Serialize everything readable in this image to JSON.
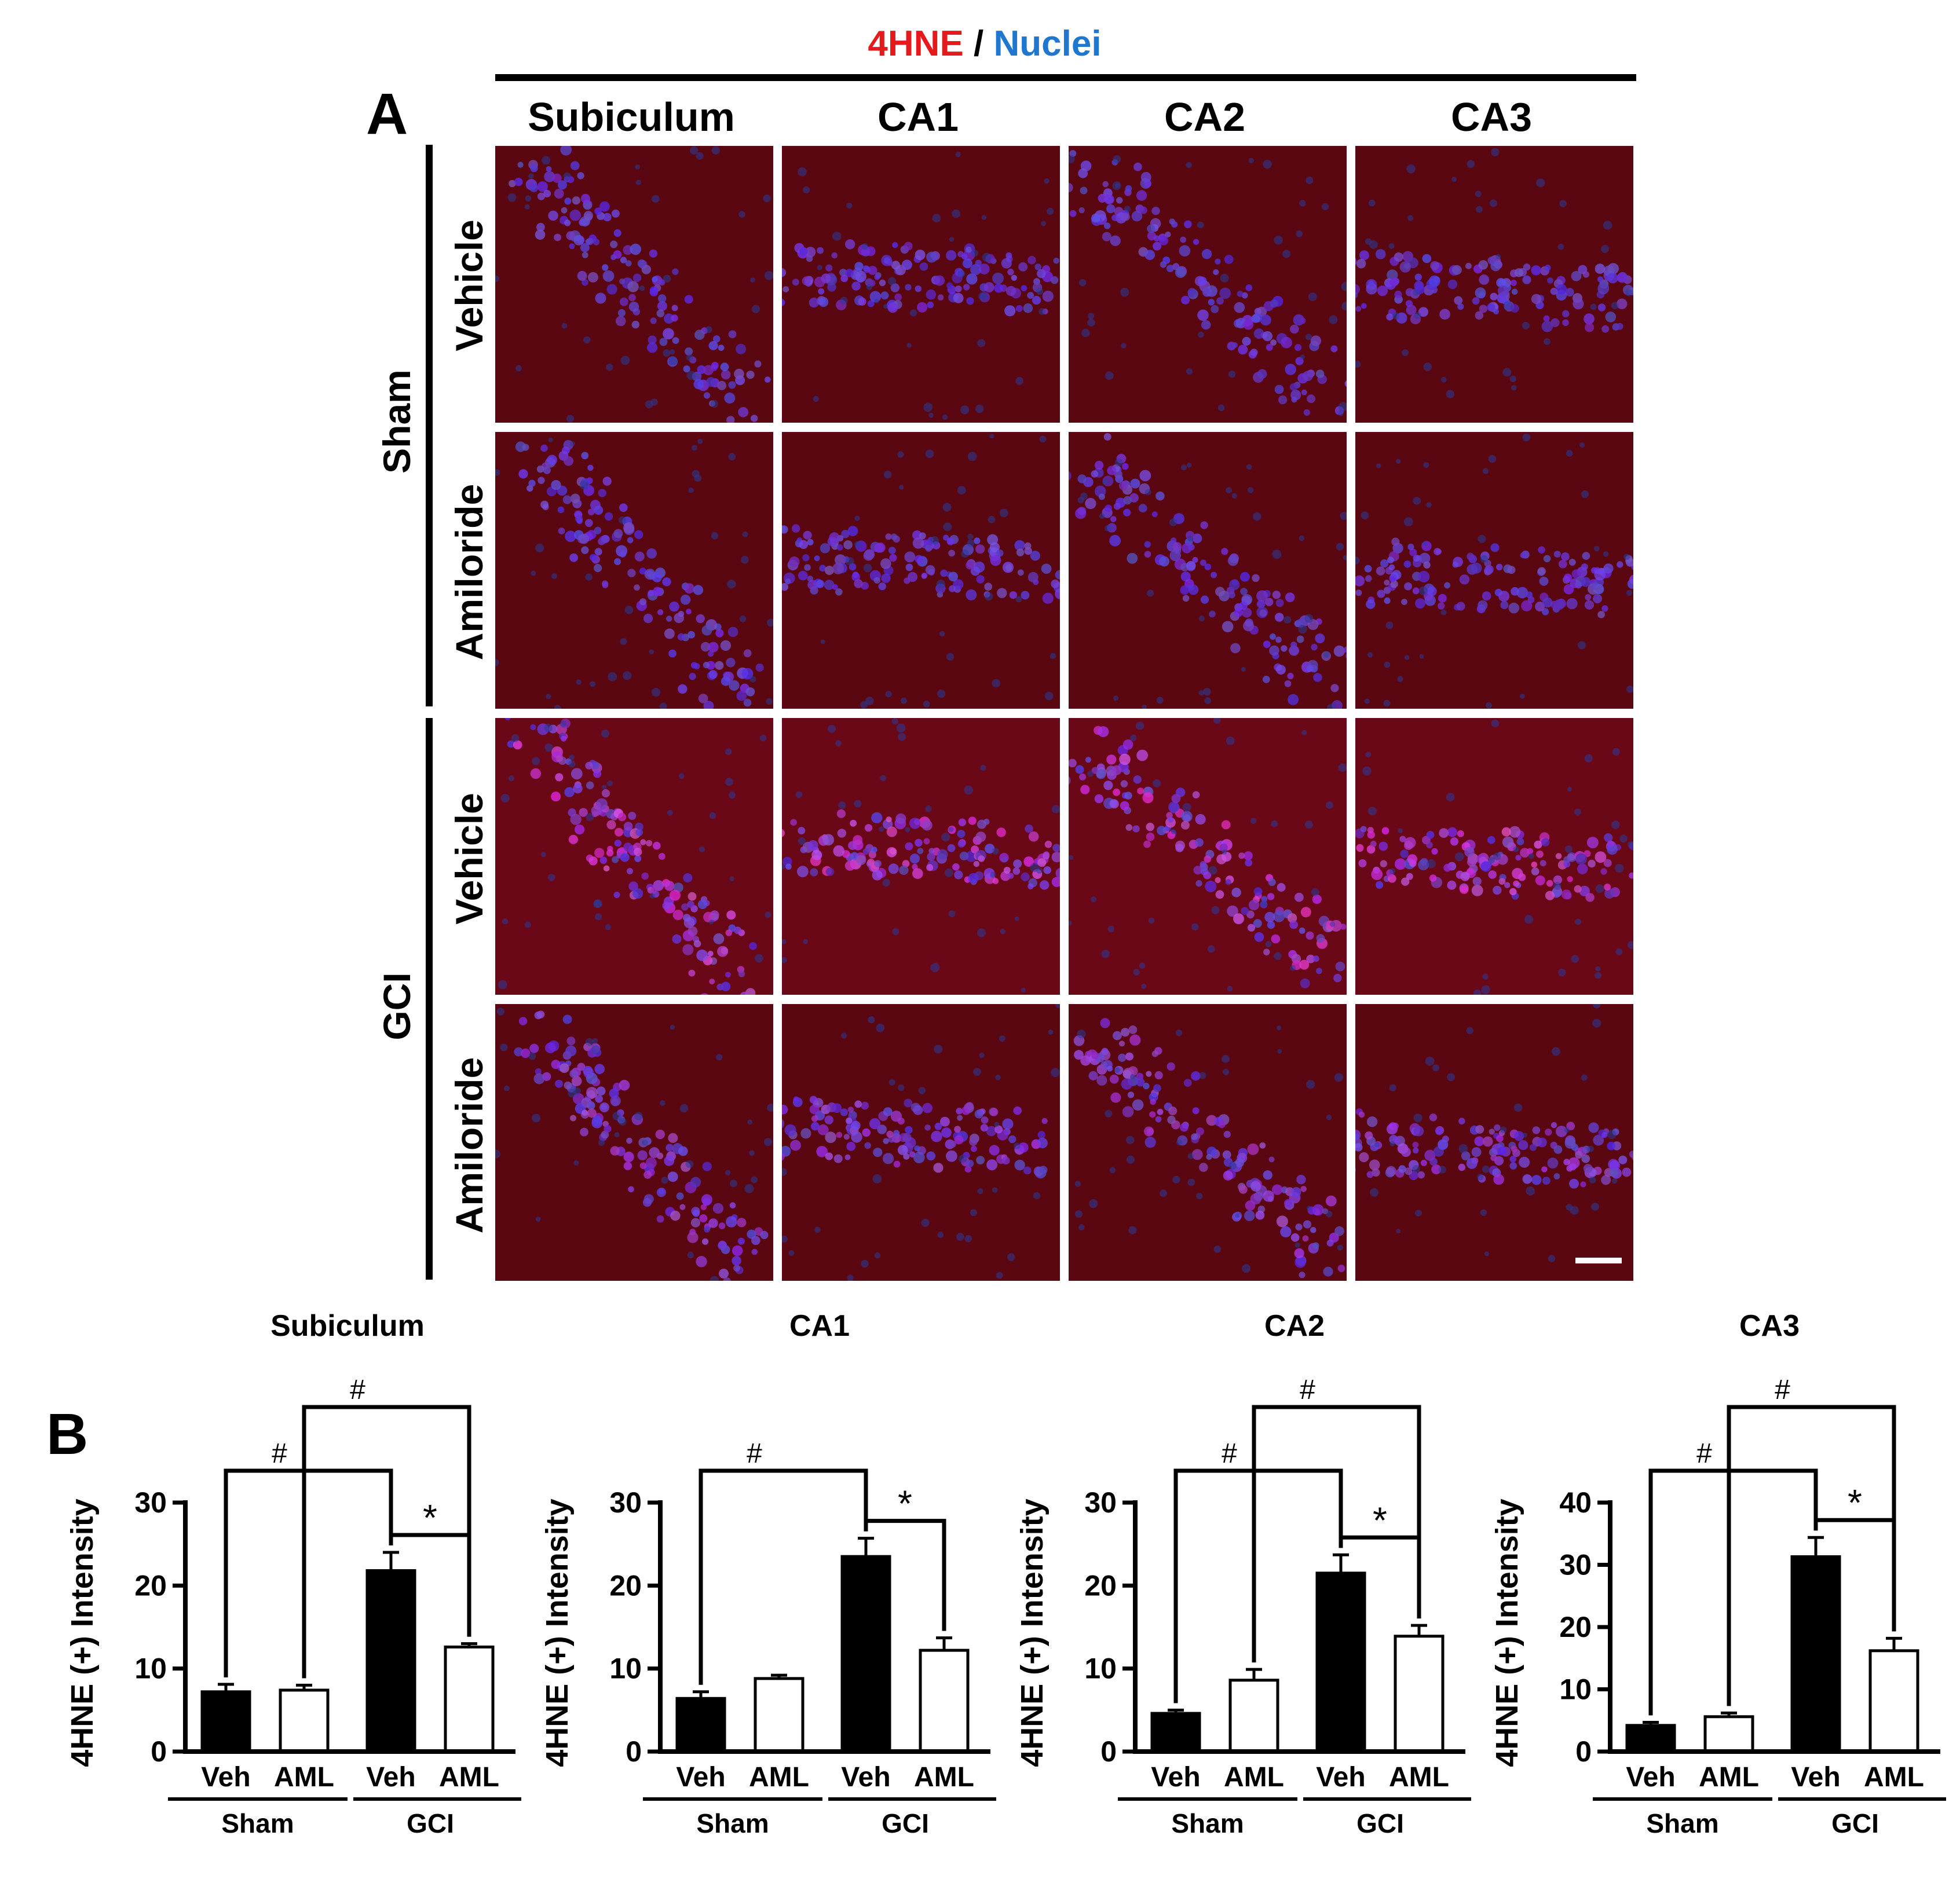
{
  "panel_a": {
    "letter": "A",
    "legend": {
      "stain": "4HNE",
      "separator": " / ",
      "counterstain": "Nuclei"
    },
    "columns": [
      "Subiculum",
      "CA1",
      "CA2",
      "CA3"
    ],
    "groups": [
      {
        "label": "Sham",
        "rows": [
          "Vehicle",
          "Amiloride"
        ]
      },
      {
        "label": "GCI",
        "rows": [
          "Vehicle",
          "Amiloride"
        ]
      }
    ],
    "colors": {
      "stain": "#e41a1c",
      "counterstain": "#1f77d0"
    }
  },
  "panel_b": {
    "letter": "B"
  },
  "chart_data": [
    {
      "type": "bar",
      "title": "Subiculum",
      "ylabel": "4HNE (+) Intensity",
      "ylim": [
        0,
        30
      ],
      "yticks": [
        0,
        10,
        20,
        30
      ],
      "categories": [
        "Veh",
        "AML",
        "Veh",
        "AML"
      ],
      "groups": [
        "Sham",
        "GCI"
      ],
      "values": [
        7.2,
        7.4,
        21.8,
        12.6
      ],
      "errors": [
        0.9,
        0.6,
        2.2,
        0.4
      ],
      "significance": [
        {
          "from": 0,
          "to": 2,
          "label": "#"
        },
        {
          "from": 1,
          "to": 3,
          "label": "#"
        },
        {
          "from": 2,
          "to": 3,
          "label": "*"
        }
      ]
    },
    {
      "type": "bar",
      "title": "CA1",
      "ylabel": "4HNE (+) Intensity",
      "ylim": [
        0,
        30
      ],
      "yticks": [
        0,
        10,
        20,
        30
      ],
      "categories": [
        "Veh",
        "AML",
        "Veh",
        "AML"
      ],
      "groups": [
        "Sham",
        "GCI"
      ],
      "values": [
        6.4,
        8.8,
        23.5,
        12.2
      ],
      "errors": [
        0.8,
        0.4,
        2.2,
        1.5
      ],
      "significance": [
        {
          "from": 0,
          "to": 2,
          "label": "#"
        },
        {
          "from": 2,
          "to": 3,
          "label": "*"
        }
      ]
    },
    {
      "type": "bar",
      "title": "CA2",
      "ylabel": "4HNE (+) Intensity",
      "ylim": [
        0,
        30
      ],
      "yticks": [
        0,
        10,
        20,
        30
      ],
      "categories": [
        "Veh",
        "AML",
        "Veh",
        "AML"
      ],
      "groups": [
        "Sham",
        "GCI"
      ],
      "values": [
        4.6,
        8.6,
        21.5,
        13.9
      ],
      "errors": [
        0.4,
        1.3,
        2.2,
        1.3
      ],
      "significance": [
        {
          "from": 0,
          "to": 2,
          "label": "#"
        },
        {
          "from": 1,
          "to": 3,
          "label": "#"
        },
        {
          "from": 2,
          "to": 3,
          "label": "*"
        }
      ]
    },
    {
      "type": "bar",
      "title": "CA3",
      "ylabel": "4HNE (+) Intensity",
      "ylim": [
        0,
        40
      ],
      "yticks": [
        0,
        10,
        20,
        30,
        40
      ],
      "categories": [
        "Veh",
        "AML",
        "Veh",
        "AML"
      ],
      "groups": [
        "Sham",
        "GCI"
      ],
      "values": [
        4.2,
        5.6,
        31.3,
        16.2
      ],
      "errors": [
        0.5,
        0.6,
        3.1,
        2.0
      ],
      "significance": [
        {
          "from": 0,
          "to": 2,
          "label": "#"
        },
        {
          "from": 1,
          "to": 3,
          "label": "#"
        },
        {
          "from": 2,
          "to": 3,
          "label": "*"
        }
      ]
    }
  ],
  "colors": {
    "veh_fill": "#000000",
    "aml_fill": "#ffffff",
    "axis": "#000000"
  }
}
